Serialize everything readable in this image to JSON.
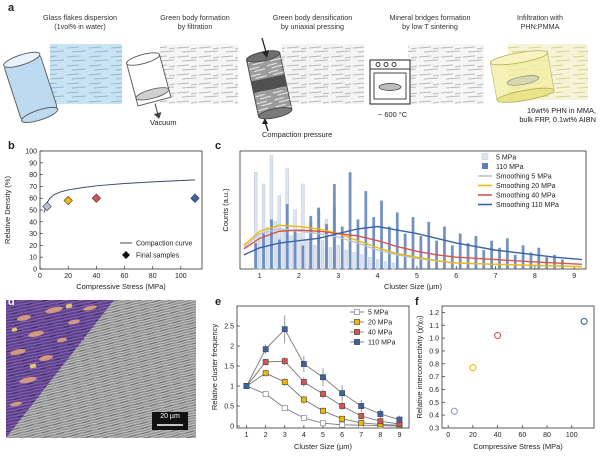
{
  "panel_a": {
    "label": "a",
    "steps": [
      {
        "line1": "Glass flakes dispersion",
        "line2": "(1vol% in water)"
      },
      {
        "line1": "Green body formation",
        "line2": "by filtration"
      },
      {
        "line1": "Green body densification",
        "line2": "by uniaxial pressing"
      },
      {
        "line1": "Mineral bridges formation",
        "line2": "by low T sintering"
      },
      {
        "line1": "Infiltration with",
        "line2": "PHN:PMMA"
      }
    ],
    "vacuum": "Vacuum",
    "compaction": "Compaction pressure",
    "temperature": "~ 600 °C",
    "infiltration_line1": "16wt% PHN in MMA,",
    "infiltration_line2": "bulk FRP, 0.1wt% AIBN"
  },
  "colors": {
    "s5": "#b8c3d3",
    "s20": "#f2b705",
    "s40": "#d9534f",
    "s110": "#3a62a8"
  },
  "chart_data": [
    {
      "panel": "b",
      "type": "scatter",
      "xlabel": "Compressive Stress (MPa)",
      "ylabel": "Relative Density (%)",
      "xlim": [
        0,
        115
      ],
      "ylim": [
        0,
        100
      ],
      "xticks": [
        0,
        20,
        40,
        60,
        80,
        100
      ],
      "yticks": [
        0,
        10,
        20,
        30,
        40,
        50,
        60,
        70,
        80,
        90,
        100
      ],
      "curve": {
        "name": "Compaction curve",
        "x": [
          3,
          5,
          7,
          10,
          15,
          20,
          30,
          40,
          60,
          80,
          110
        ],
        "y": [
          48,
          56,
          60,
          63,
          65.5,
          67,
          69,
          70.5,
          72.5,
          73.8,
          75.5
        ]
      },
      "points": {
        "name": "Final samples",
        "x": [
          5,
          20,
          40,
          110
        ],
        "y": [
          53,
          58,
          60,
          60
        ],
        "colors": [
          "#b8c3d3",
          "#f2b705",
          "#d9534f",
          "#3a62a8"
        ]
      },
      "legend": "bottom-right"
    },
    {
      "panel": "c",
      "type": "bar",
      "xlabel": "Cluster Size (µm)",
      "ylabel": "Counts (a.u.)",
      "xlim": [
        0.5,
        9.3
      ],
      "xticks": [
        1,
        2,
        3,
        4,
        5,
        6,
        7,
        8,
        9
      ],
      "legend": "top-right",
      "series": [
        {
          "name": "5 MPa",
          "kind": "bar",
          "x": [
            0.9,
            1.0,
            1.1,
            1.2,
            1.3,
            1.4,
            1.5,
            1.6,
            1.7,
            1.8,
            1.9,
            2.0,
            2.1,
            2.2,
            2.3,
            2.4,
            2.5,
            2.6,
            2.7,
            2.8,
            2.9,
            3.0,
            3.2,
            3.4,
            3.6,
            3.8,
            4.0,
            4.2,
            4.4
          ],
          "y": [
            0.82,
            0.3,
            0.72,
            0.35,
            0.96,
            0.4,
            0.62,
            0.32,
            0.85,
            0.28,
            0.5,
            0.3,
            0.72,
            0.25,
            0.4,
            0.2,
            0.5,
            0.24,
            0.42,
            0.18,
            0.52,
            0.2,
            0.16,
            0.14,
            0.12,
            0.1,
            0.08,
            0.06,
            0.05
          ]
        },
        {
          "name": "110 MPa",
          "kind": "bar",
          "x": [
            0.9,
            1.1,
            1.3,
            1.5,
            1.7,
            1.9,
            2.1,
            2.3,
            2.5,
            2.7,
            2.9,
            3.1,
            3.3,
            3.5,
            3.7,
            3.9,
            4.1,
            4.3,
            4.5,
            4.7,
            4.9,
            5.1,
            5.3,
            5.5,
            5.7,
            5.9,
            6.1,
            6.3,
            6.5,
            6.7,
            6.9,
            7.1,
            7.3,
            7.5,
            7.7,
            7.9,
            8.1,
            8.3,
            8.5,
            8.7
          ],
          "y": [
            0.22,
            0.3,
            0.42,
            0.25,
            0.55,
            0.32,
            0.2,
            0.45,
            0.52,
            0.38,
            0.72,
            0.36,
            0.82,
            0.42,
            0.66,
            0.44,
            0.58,
            0.36,
            0.48,
            0.3,
            0.44,
            0.28,
            0.4,
            0.24,
            0.36,
            0.2,
            0.3,
            0.22,
            0.28,
            0.16,
            0.24,
            0.18,
            0.26,
            0.12,
            0.2,
            0.14,
            0.18,
            0.1,
            0.12,
            0.08
          ]
        },
        {
          "name": "Smoothing 5 MPa",
          "kind": "line",
          "x": [
            0.6,
            1,
            1.5,
            2,
            2.5,
            3,
            3.5,
            4,
            4.5,
            5,
            5.5,
            6,
            7,
            8,
            9.2
          ],
          "y": [
            0.18,
            0.3,
            0.34,
            0.32,
            0.3,
            0.27,
            0.22,
            0.16,
            0.12,
            0.09,
            0.07,
            0.05,
            0.04,
            0.03,
            0.02
          ]
        },
        {
          "name": "Smoothing 20 MPa",
          "kind": "line",
          "x": [
            0.6,
            1,
            1.5,
            2,
            2.5,
            3,
            3.5,
            4,
            4.5,
            5,
            5.5,
            6,
            7,
            8,
            9.2
          ],
          "y": [
            0.2,
            0.32,
            0.37,
            0.36,
            0.34,
            0.3,
            0.24,
            0.18,
            0.13,
            0.1,
            0.07,
            0.05,
            0.04,
            0.03,
            0.02
          ]
        },
        {
          "name": "Smoothing 40 MPa",
          "kind": "line",
          "x": [
            0.6,
            1,
            1.5,
            2,
            2.5,
            3,
            3.5,
            4,
            4.5,
            5,
            5.5,
            6,
            7,
            8,
            9.2
          ],
          "y": [
            0.17,
            0.26,
            0.32,
            0.33,
            0.32,
            0.3,
            0.28,
            0.24,
            0.19,
            0.15,
            0.12,
            0.1,
            0.08,
            0.06,
            0.04
          ]
        },
        {
          "name": "Smoothing 110 MPa",
          "kind": "line",
          "x": [
            0.6,
            1,
            1.5,
            2,
            2.5,
            3,
            3.5,
            4,
            4.5,
            5,
            5.5,
            6,
            6.5,
            7,
            7.5,
            8,
            8.5,
            9.2
          ],
          "y": [
            0.12,
            0.18,
            0.22,
            0.24,
            0.26,
            0.3,
            0.34,
            0.36,
            0.33,
            0.3,
            0.26,
            0.22,
            0.19,
            0.16,
            0.14,
            0.12,
            0.1,
            0.08
          ]
        }
      ]
    },
    {
      "panel": "e",
      "type": "line",
      "xlabel": "Cluster Size (µm)",
      "ylabel": "Relative cluster frequency",
      "xlim": [
        0.5,
        9.5
      ],
      "ylim": [
        -0.05,
        3.0
      ],
      "xticks": [
        1,
        2,
        3,
        4,
        5,
        6,
        7,
        8,
        9
      ],
      "yticks": [
        0,
        0.5,
        1.0,
        1.5,
        2.0,
        2.5
      ],
      "legend": "top-right",
      "categories": [
        1,
        2,
        3,
        4,
        5,
        6,
        7,
        8,
        9
      ],
      "series": [
        {
          "name": "5 MPa",
          "values": [
            1.0,
            0.8,
            0.45,
            0.2,
            0.07,
            0.03,
            0.02,
            0.01,
            0.0
          ],
          "err": [
            0.03,
            0.05,
            0.06,
            0.05,
            0.04,
            0.02,
            0.02,
            0.01,
            0.01
          ]
        },
        {
          "name": "20 MPa",
          "values": [
            1.0,
            1.32,
            1.1,
            0.66,
            0.38,
            0.18,
            0.08,
            0.04,
            0.02
          ],
          "err": [
            0.03,
            0.08,
            0.1,
            0.1,
            0.08,
            0.06,
            0.04,
            0.03,
            0.02
          ]
        },
        {
          "name": "40 MPa",
          "values": [
            1.0,
            1.6,
            1.62,
            1.1,
            0.8,
            0.5,
            0.25,
            0.12,
            0.05
          ],
          "err": [
            0.03,
            0.08,
            0.1,
            0.12,
            0.12,
            0.1,
            0.08,
            0.06,
            0.03
          ]
        },
        {
          "name": "110 MPa",
          "values": [
            1.0,
            1.92,
            2.42,
            1.55,
            1.22,
            0.82,
            0.5,
            0.3,
            0.16
          ],
          "err": [
            0.04,
            0.12,
            0.35,
            0.2,
            0.22,
            0.2,
            0.15,
            0.12,
            0.1
          ]
        }
      ]
    },
    {
      "panel": "f",
      "type": "scatter",
      "xlabel": "Compressive Stress (MPa)",
      "ylabel": "Relative interconnectivity (χ/χ₀)",
      "xlim": [
        -5,
        118
      ],
      "ylim": [
        0.3,
        1.25
      ],
      "xticks": [
        0,
        20,
        40,
        60,
        80,
        100
      ],
      "yticks": [
        0.3,
        0.4,
        0.5,
        0.6,
        0.7,
        0.8,
        0.9,
        1.0,
        1.1,
        1.2
      ],
      "points": {
        "x": [
          5,
          20,
          40,
          110
        ],
        "y": [
          0.43,
          0.77,
          1.02,
          1.13
        ],
        "err": [
          0.03,
          0.03,
          0.02,
          0.02
        ],
        "colors": [
          "#9aa5b5",
          "#f2b705",
          "#d9534f",
          "#3a62a8"
        ]
      }
    }
  ],
  "panel_labels": {
    "b": "b",
    "c": "c",
    "d": "d",
    "e": "e",
    "f": "f"
  },
  "panel_d": {
    "scale_bar": "20 µm"
  }
}
